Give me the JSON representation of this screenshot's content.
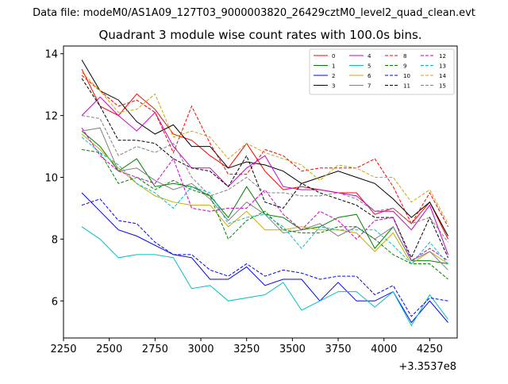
{
  "header": {
    "data_file": "Data file: modeM0/AS1A09_127T03_9000003820_26429cztM0_level2_quad_clean.evt"
  },
  "chart_data": {
    "type": "line",
    "title": "Quadrant 3 module wise count rates with 100.0s bins.",
    "xlabel": "",
    "ylabel": "",
    "x_offset_label": "+3.3537e8",
    "xlim": [
      2250,
      4400
    ],
    "ylim": [
      4.8,
      14.25
    ],
    "xticks": [
      2250,
      2500,
      2750,
      3000,
      3250,
      3500,
      3750,
      4000,
      4250
    ],
    "yticks": [
      6,
      8,
      10,
      12,
      14
    ],
    "grid": false,
    "legend_position": "top-right",
    "x": [
      2350,
      2450,
      2550,
      2650,
      2750,
      2850,
      2950,
      3050,
      3150,
      3250,
      3350,
      3450,
      3550,
      3650,
      3750,
      3850,
      3950,
      4050,
      4150,
      4250,
      4350
    ],
    "series": [
      {
        "name": "0",
        "color": "#ff0000",
        "dash": "solid",
        "values": [
          13.5,
          12.3,
          12.0,
          12.7,
          12.2,
          11.4,
          11.2,
          10.7,
          10.3,
          11.1,
          10.2,
          9.6,
          9.7,
          9.6,
          9.5,
          9.5,
          8.8,
          9.0,
          8.5,
          9.2,
          8.0
        ]
      },
      {
        "name": "1",
        "color": "#008000",
        "dash": "solid",
        "values": [
          11.5,
          11.0,
          10.2,
          10.6,
          9.7,
          9.8,
          9.7,
          9.4,
          8.7,
          9.7,
          8.8,
          8.7,
          8.3,
          8.4,
          8.7,
          8.8,
          7.7,
          8.4,
          7.3,
          7.3,
          7.2
        ]
      },
      {
        "name": "2",
        "color": "#0000ff",
        "dash": "solid",
        "values": [
          9.5,
          8.9,
          8.3,
          8.1,
          7.8,
          7.5,
          7.4,
          6.7,
          6.7,
          7.1,
          6.5,
          6.7,
          6.7,
          6.0,
          6.6,
          6.0,
          6.0,
          6.3,
          5.3,
          6.0,
          5.3
        ]
      },
      {
        "name": "3",
        "color": "#000000",
        "dash": "solid",
        "values": [
          13.8,
          12.8,
          12.5,
          11.8,
          11.4,
          11.7,
          11.0,
          11.0,
          10.3,
          10.5,
          10.4,
          10.2,
          9.8,
          10.0,
          10.2,
          10.0,
          9.8,
          9.3,
          8.7,
          9.2,
          8.1
        ]
      },
      {
        "name": "4",
        "color": "#cc00cc",
        "dash": "solid",
        "values": [
          12.0,
          12.6,
          12.0,
          11.5,
          12.1,
          11.0,
          10.3,
          10.3,
          9.7,
          10.3,
          10.7,
          9.7,
          9.6,
          9.6,
          9.5,
          9.4,
          8.9,
          8.9,
          8.3,
          9.1,
          7.5
        ]
      },
      {
        "name": "5",
        "color": "#00c0c0",
        "dash": "solid",
        "values": [
          8.4,
          8.0,
          7.4,
          7.5,
          7.5,
          7.4,
          6.4,
          6.5,
          6.0,
          6.1,
          6.2,
          6.6,
          5.7,
          6.0,
          6.3,
          6.3,
          5.8,
          6.3,
          5.2,
          6.2,
          5.4
        ]
      },
      {
        "name": "6",
        "color": "#ccaa00",
        "dash": "solid",
        "values": [
          11.4,
          10.9,
          10.3,
          9.8,
          9.4,
          9.2,
          9.1,
          9.1,
          8.4,
          8.9,
          8.3,
          8.3,
          8.4,
          8.3,
          8.3,
          8.2,
          7.6,
          8.2,
          7.2,
          7.6,
          7.2
        ]
      },
      {
        "name": "7",
        "color": "#808080",
        "dash": "solid",
        "values": [
          11.5,
          11.6,
          10.2,
          10.3,
          9.9,
          9.6,
          9.8,
          9.3,
          8.6,
          9.2,
          8.8,
          8.2,
          8.3,
          8.5,
          8.1,
          8.4,
          8.0,
          8.4,
          7.3,
          7.6,
          7.0
        ]
      },
      {
        "name": "8",
        "color": "#ff0000",
        "dash": "dashed",
        "values": [
          13.3,
          12.8,
          12.3,
          12.5,
          12.1,
          10.8,
          12.3,
          11.1,
          10.1,
          10.1,
          10.9,
          10.7,
          10.2,
          10.3,
          10.3,
          10.3,
          10.6,
          9.7,
          8.5,
          9.5,
          8.4
        ]
      },
      {
        "name": "9",
        "color": "#008000",
        "dash": "dashed",
        "values": [
          10.9,
          10.8,
          9.8,
          10.0,
          9.6,
          9.9,
          9.6,
          9.4,
          8.0,
          8.6,
          8.9,
          8.3,
          8.2,
          8.2,
          8.4,
          8.4,
          8.0,
          7.5,
          7.2,
          7.2,
          6.7
        ]
      },
      {
        "name": "10",
        "color": "#0000ff",
        "dash": "dashed",
        "values": [
          9.1,
          9.3,
          8.6,
          8.5,
          7.9,
          7.5,
          7.5,
          7.0,
          6.8,
          7.2,
          6.8,
          7.0,
          6.9,
          6.7,
          6.8,
          6.8,
          6.2,
          6.5,
          5.5,
          6.1,
          6.0
        ]
      },
      {
        "name": "11",
        "color": "#000000",
        "dash": "dashed",
        "values": [
          13.2,
          12.3,
          11.2,
          11.2,
          11.1,
          10.6,
          10.3,
          10.2,
          9.7,
          10.7,
          9.2,
          9.0,
          9.8,
          9.5,
          9.3,
          9.1,
          8.7,
          8.7,
          7.4,
          8.7,
          7.4
        ]
      },
      {
        "name": "12",
        "color": "#cc00cc",
        "dash": "dashed",
        "values": [
          11.6,
          10.7,
          10.2,
          10.0,
          9.8,
          10.6,
          9.0,
          8.9,
          9.0,
          9.0,
          9.6,
          8.8,
          8.3,
          8.9,
          8.6,
          8.0,
          8.6,
          8.7,
          7.3,
          7.7,
          7.3
        ]
      },
      {
        "name": "13",
        "color": "#00c0c0",
        "dash": "dashed",
        "values": [
          11.3,
          10.8,
          10.4,
          9.8,
          9.5,
          9.0,
          9.7,
          9.5,
          8.5,
          8.7,
          8.8,
          8.4,
          7.7,
          8.4,
          8.3,
          8.3,
          8.3,
          7.8,
          7.2,
          7.9,
          7.2
        ]
      },
      {
        "name": "14",
        "color": "#ccaa00",
        "dash": "dashed",
        "values": [
          13.4,
          12.8,
          12.1,
          12.2,
          12.7,
          11.3,
          11.5,
          11.3,
          10.6,
          11.1,
          10.8,
          10.6,
          10.4,
          9.9,
          10.4,
          10.3,
          10.0,
          10.0,
          9.2,
          9.6,
          8.5
        ]
      },
      {
        "name": "15",
        "color": "#808080",
        "dash": "dashed",
        "values": [
          12.0,
          11.9,
          10.7,
          11.0,
          10.8,
          11.1,
          10.0,
          9.4,
          9.6,
          10.0,
          9.5,
          9.5,
          9.4,
          9.4,
          9.5,
          9.3,
          8.9,
          9.0,
          8.5,
          8.7,
          7.9
        ]
      }
    ]
  }
}
